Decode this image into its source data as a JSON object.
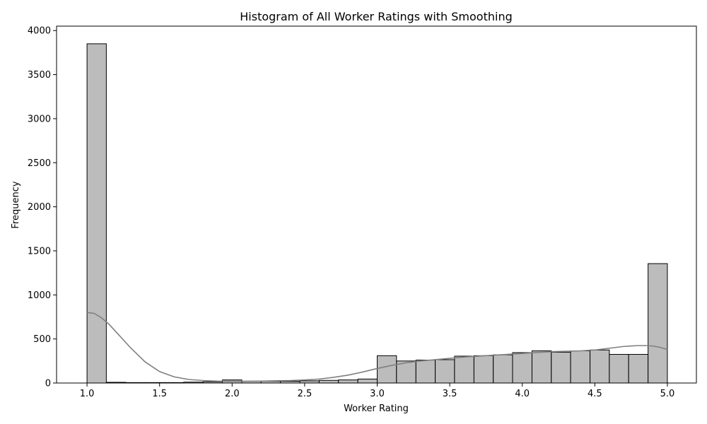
{
  "chart_data": {
    "type": "bar",
    "title": "Histogram of All Worker Ratings with Smoothing",
    "xlabel": "Worker Rating",
    "ylabel": "Frequency",
    "xlim": [
      0.79,
      5.2
    ],
    "ylim": [
      0,
      4050
    ],
    "x_ticks": [
      "1.0",
      "1.5",
      "2.0",
      "2.5",
      "3.0",
      "3.5",
      "4.0",
      "4.5",
      "5.0"
    ],
    "y_ticks": [
      "0",
      "500",
      "1000",
      "1500",
      "2000",
      "2500",
      "3000",
      "3500",
      "4000"
    ],
    "bins": [
      {
        "x0": 1.0,
        "x1": 1.133,
        "count": 3850
      },
      {
        "x0": 1.133,
        "x1": 1.267,
        "count": 8
      },
      {
        "x0": 1.267,
        "x1": 1.4,
        "count": 5
      },
      {
        "x0": 1.4,
        "x1": 1.533,
        "count": 5
      },
      {
        "x0": 1.533,
        "x1": 1.667,
        "count": 5
      },
      {
        "x0": 1.667,
        "x1": 1.8,
        "count": 10
      },
      {
        "x0": 1.8,
        "x1": 1.933,
        "count": 15
      },
      {
        "x0": 1.933,
        "x1": 2.067,
        "count": 35
      },
      {
        "x0": 2.067,
        "x1": 2.2,
        "count": 20
      },
      {
        "x0": 2.2,
        "x1": 2.333,
        "count": 20
      },
      {
        "x0": 2.333,
        "x1": 2.467,
        "count": 20
      },
      {
        "x0": 2.467,
        "x1": 2.6,
        "count": 25
      },
      {
        "x0": 2.6,
        "x1": 2.733,
        "count": 30
      },
      {
        "x0": 2.733,
        "x1": 2.867,
        "count": 35
      },
      {
        "x0": 2.867,
        "x1": 3.0,
        "count": 45
      },
      {
        "x0": 3.0,
        "x1": 3.133,
        "count": 310
      },
      {
        "x0": 3.133,
        "x1": 3.267,
        "count": 250
      },
      {
        "x0": 3.267,
        "x1": 3.4,
        "count": 260
      },
      {
        "x0": 3.4,
        "x1": 3.533,
        "count": 265
      },
      {
        "x0": 3.533,
        "x1": 3.667,
        "count": 305
      },
      {
        "x0": 3.667,
        "x1": 3.8,
        "count": 310
      },
      {
        "x0": 3.8,
        "x1": 3.933,
        "count": 320
      },
      {
        "x0": 3.933,
        "x1": 4.067,
        "count": 345
      },
      {
        "x0": 4.067,
        "x1": 4.2,
        "count": 365
      },
      {
        "x0": 4.2,
        "x1": 4.333,
        "count": 350
      },
      {
        "x0": 4.333,
        "x1": 4.467,
        "count": 365
      },
      {
        "x0": 4.467,
        "x1": 4.6,
        "count": 375
      },
      {
        "x0": 4.6,
        "x1": 4.733,
        "count": 325
      },
      {
        "x0": 4.733,
        "x1": 4.867,
        "count": 325
      },
      {
        "x0": 4.867,
        "x1": 5.0,
        "count": 1355
      }
    ],
    "kde": {
      "x": [
        1.0,
        1.05,
        1.1,
        1.15,
        1.2,
        1.3,
        1.4,
        1.5,
        1.6,
        1.7,
        1.8,
        1.9,
        2.0,
        2.2,
        2.4,
        2.5,
        2.6,
        2.7,
        2.8,
        2.9,
        3.0,
        3.1,
        3.2,
        3.3,
        3.4,
        3.5,
        3.6,
        3.7,
        3.8,
        3.9,
        4.0,
        4.1,
        4.2,
        4.3,
        4.4,
        4.5,
        4.6,
        4.7,
        4.8,
        4.85,
        4.9,
        4.95,
        5.0
      ],
      "y": [
        800,
        790,
        740,
        670,
        580,
        400,
        240,
        130,
        70,
        40,
        28,
        22,
        20,
        22,
        28,
        35,
        45,
        65,
        90,
        125,
        165,
        200,
        230,
        250,
        265,
        280,
        295,
        305,
        315,
        325,
        335,
        345,
        355,
        360,
        365,
        375,
        395,
        415,
        425,
        425,
        420,
        405,
        380
      ]
    },
    "colors": {
      "bar_fill": "#bcbcbc",
      "bar_edge": "#000000",
      "kde_line": "#808080"
    },
    "grid": false,
    "legend": "none"
  }
}
